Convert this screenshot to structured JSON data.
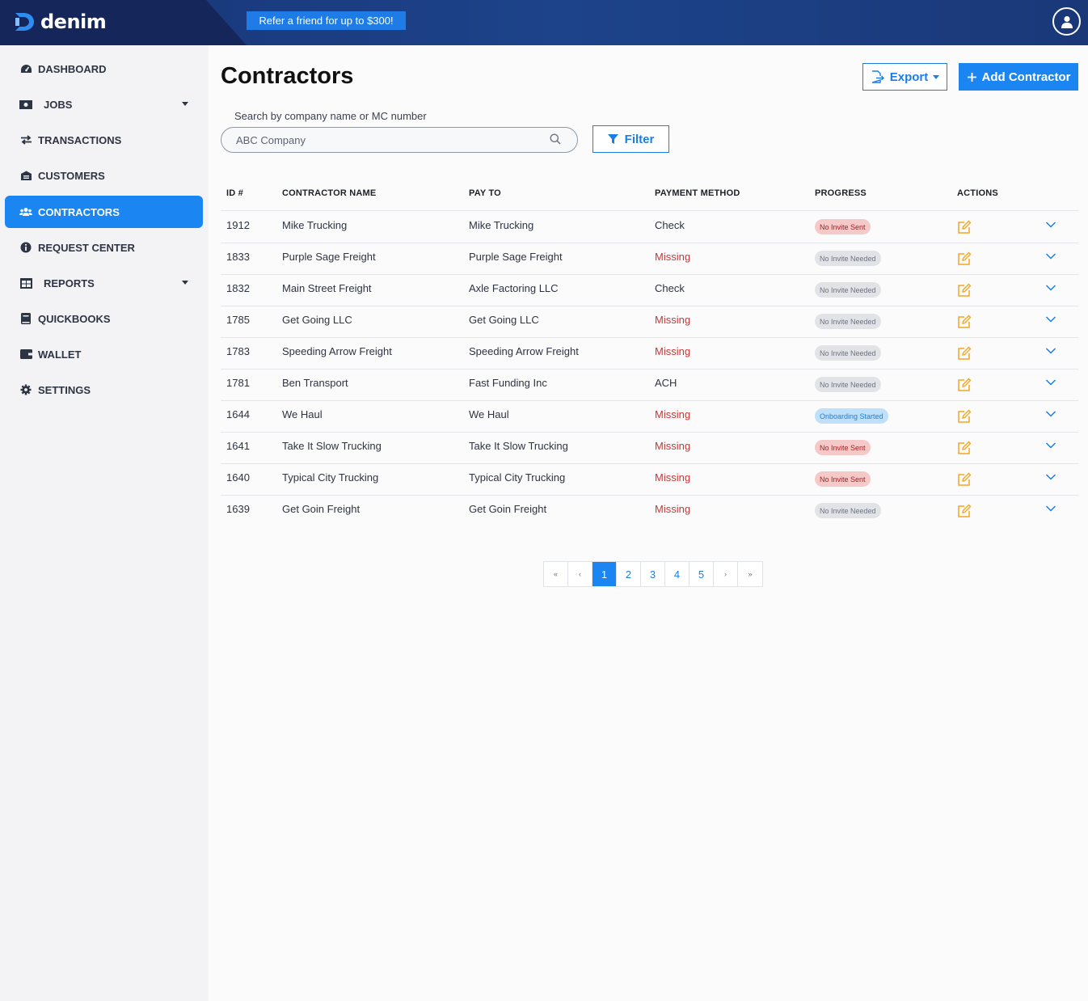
{
  "app": {
    "logo_text": "denim",
    "refer_label": "Refer a friend for up to $300!"
  },
  "sidebar": {
    "items": [
      {
        "label": "DASHBOARD",
        "icon": "dashboard-icon"
      },
      {
        "label": "JOBS",
        "icon": "money-icon"
      },
      {
        "label": "TRANSACTIONS",
        "icon": "exchange-icon"
      },
      {
        "label": "CUSTOMERS",
        "icon": "building-icon"
      },
      {
        "label": "CONTRACTORS",
        "icon": "users-icon"
      },
      {
        "label": "REQUEST CENTER",
        "icon": "info-icon"
      },
      {
        "label": "REPORTS",
        "icon": "table-icon"
      },
      {
        "label": "QUICKBOOKS",
        "icon": "book-icon"
      },
      {
        "label": "WALLET",
        "icon": "wallet-icon"
      },
      {
        "label": "SETTINGS",
        "icon": "gear-icon"
      }
    ],
    "active": "CONTRACTORS"
  },
  "main": {
    "title": "Contractors",
    "export_label": "Export",
    "add_label": "Add Contractor",
    "search_label": "Search by company name or MC number",
    "search_placeholder": "ABC Company",
    "filter_label": "Filter"
  },
  "table": {
    "headers": [
      "ID #",
      "CONTRACTOR NAME",
      "PAY TO",
      "PAYMENT METHOD",
      "PROGRESS",
      "ACTIONS"
    ],
    "rows": [
      {
        "id": "1912",
        "name": "Mike Trucking",
        "pay_to": "Mike Trucking",
        "method": "Check",
        "progress": "No Invite Sent"
      },
      {
        "id": "1833",
        "name": "Purple Sage Freight",
        "pay_to": "Purple Sage Freight",
        "method": "Missing",
        "progress": "No Invite Needed"
      },
      {
        "id": "1832",
        "name": "Main Street Freight",
        "pay_to": "Axle Factoring LLC",
        "method": "Check",
        "progress": "No Invite Needed"
      },
      {
        "id": "1785",
        "name": "Get Going LLC",
        "pay_to": "Get Going LLC",
        "method": "Missing",
        "progress": "No Invite Needed"
      },
      {
        "id": "1783",
        "name": "Speeding Arrow Freight",
        "pay_to": "Speeding Arrow Freight",
        "method": "Missing",
        "progress": "No Invite Needed"
      },
      {
        "id": "1781",
        "name": "Ben Transport",
        "pay_to": "Fast Funding Inc",
        "method": "ACH",
        "progress": "No Invite Needed"
      },
      {
        "id": "1644",
        "name": "We Haul",
        "pay_to": "We Haul",
        "method": "Missing",
        "progress": "Onboarding Started"
      },
      {
        "id": "1641",
        "name": "Take It Slow Trucking",
        "pay_to": "Take It Slow Trucking",
        "method": "Missing",
        "progress": "No Invite Sent"
      },
      {
        "id": "1640",
        "name": "Typical City Trucking",
        "pay_to": "Typical City Trucking",
        "method": "Missing",
        "progress": "No Invite Sent"
      },
      {
        "id": "1639",
        "name": "Get Goin Freight",
        "pay_to": "Get Goin Freight",
        "method": "Missing",
        "progress": "No Invite Needed"
      }
    ]
  },
  "pagination": {
    "first": "«",
    "prev": "‹",
    "pages": [
      "1",
      "2",
      "3",
      "4",
      "5"
    ],
    "next": "›",
    "last": "»",
    "current": "1"
  },
  "colors": {
    "brand_blue": "#1b86f2",
    "topbar": "#15265a",
    "missing_red": "#c83737",
    "edit_orange": "#f5a623"
  }
}
